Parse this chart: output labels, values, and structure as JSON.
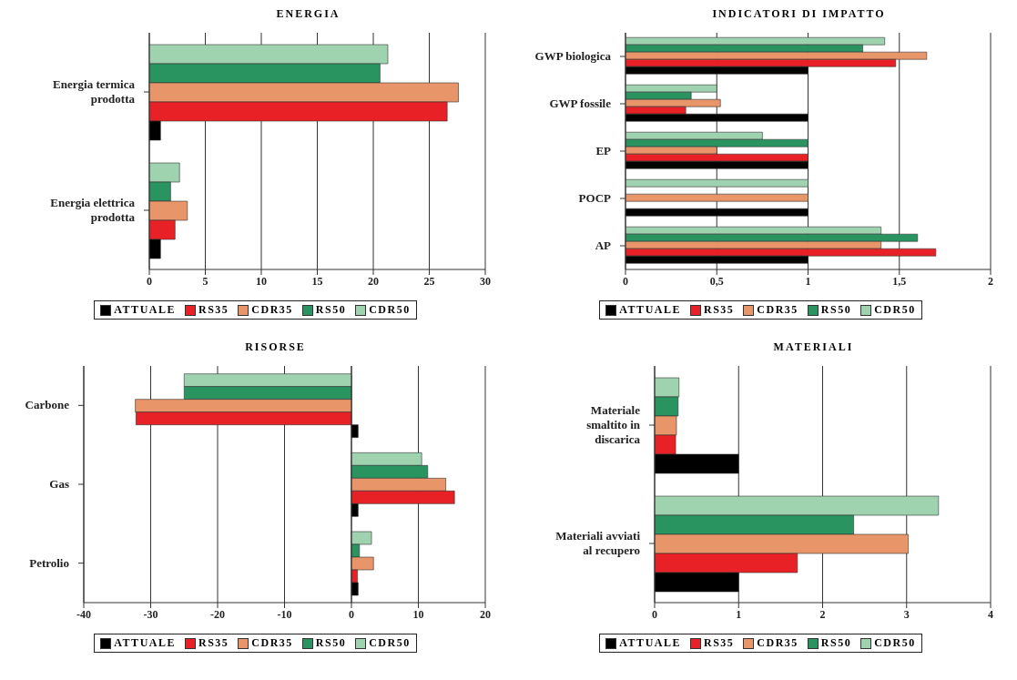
{
  "chart_data": [
    {
      "type": "bar",
      "orientation": "horizontal",
      "title": "ENERGIA",
      "categories": [
        "Energia termica prodotta",
        "Energia elettrica prodotta"
      ],
      "series": [
        {
          "name": "ATTUALE",
          "color": "#000000",
          "values": [
            1,
            1
          ]
        },
        {
          "name": "RS35",
          "color": "#e82127",
          "values": [
            26.6,
            2.3
          ]
        },
        {
          "name": "CDR35",
          "color": "#e8956a",
          "values": [
            27.6,
            3.4
          ]
        },
        {
          "name": "RS50",
          "color": "#2a9460",
          "values": [
            20.6,
            1.9
          ]
        },
        {
          "name": "CDR50",
          "color": "#9fd3b0",
          "values": [
            21.3,
            2.7
          ]
        }
      ],
      "xlim": [
        0,
        30
      ],
      "xticks": [
        0,
        5,
        10,
        15,
        20,
        25,
        30
      ],
      "grid": "x",
      "legend": "bottom"
    },
    {
      "type": "bar",
      "orientation": "horizontal",
      "title": "INDICATORI DI IMPATTO",
      "categories": [
        "GWP biologica",
        "GWP fossile",
        "EP",
        "POCP",
        "AP"
      ],
      "series": [
        {
          "name": "ATTUALE",
          "color": "#000000",
          "values": [
            1,
            1,
            1,
            1,
            1
          ]
        },
        {
          "name": "RS35",
          "color": "#e82127",
          "values": [
            1.48,
            0.33,
            1,
            null,
            1.7
          ]
        },
        {
          "name": "CDR35",
          "color": "#e8956a",
          "values": [
            1.65,
            0.52,
            0.5,
            1,
            1.4
          ]
        },
        {
          "name": "RS50",
          "color": "#2a9460",
          "values": [
            1.3,
            0.36,
            1,
            null,
            1.6
          ]
        },
        {
          "name": "CDR50",
          "color": "#9fd3b0",
          "values": [
            1.42,
            0.5,
            0.75,
            1,
            1.4
          ]
        }
      ],
      "xlim": [
        0,
        2
      ],
      "xticks": [
        0,
        {
          "value": 0.5,
          "label": "0,5"
        },
        1,
        {
          "value": 1.5,
          "label": "1,5"
        },
        2
      ],
      "grid": "x",
      "legend": "bottom"
    },
    {
      "type": "bar",
      "orientation": "horizontal",
      "title": "RISORSE",
      "categories": [
        "Carbone",
        "Gas",
        "Petrolio"
      ],
      "series": [
        {
          "name": "ATTUALE",
          "color": "#000000",
          "values": [
            1,
            1,
            1
          ]
        },
        {
          "name": "RS35",
          "color": "#e82127",
          "values": [
            -32.2,
            15.4,
            0.9
          ]
        },
        {
          "name": "CDR35",
          "color": "#e8956a",
          "values": [
            -32.3,
            14.1,
            3.3
          ]
        },
        {
          "name": "RS50",
          "color": "#2a9460",
          "values": [
            -25,
            11.4,
            1.2
          ]
        },
        {
          "name": "CDR50",
          "color": "#9fd3b0",
          "values": [
            -25,
            10.5,
            3
          ]
        }
      ],
      "xlim": [
        -40,
        20
      ],
      "xticks": [
        -40,
        -30,
        -20,
        -10,
        0,
        10,
        20
      ],
      "grid": "x",
      "legend": "bottom"
    },
    {
      "type": "bar",
      "orientation": "horizontal",
      "title": "MATERIALI",
      "categories": [
        "Materiale smaltito in discarica",
        "Materiali avviati al recupero"
      ],
      "series": [
        {
          "name": "ATTUALE",
          "color": "#000000",
          "values": [
            1,
            1
          ]
        },
        {
          "name": "RS35",
          "color": "#e82127",
          "values": [
            0.25,
            1.7
          ]
        },
        {
          "name": "CDR35",
          "color": "#e8956a",
          "values": [
            0.26,
            3.02
          ]
        },
        {
          "name": "RS50",
          "color": "#2a9460",
          "values": [
            0.28,
            2.37
          ]
        },
        {
          "name": "CDR50",
          "color": "#9fd3b0",
          "values": [
            0.29,
            3.38
          ]
        }
      ],
      "xlim": [
        0,
        4
      ],
      "xticks": [
        0,
        1,
        2,
        3,
        4
      ],
      "grid": "x",
      "legend": "bottom"
    }
  ]
}
